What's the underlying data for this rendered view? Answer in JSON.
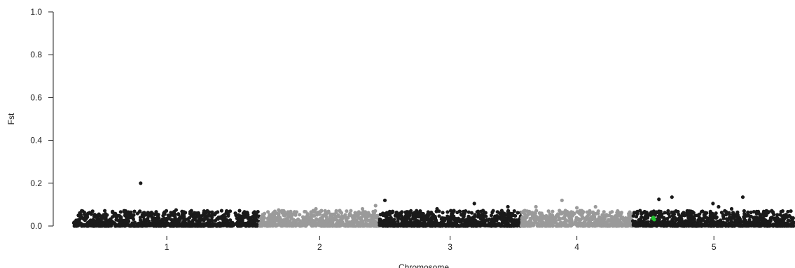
{
  "chart_data": {
    "type": "scatter",
    "xlabel": "Chromosome",
    "ylabel": "Fst",
    "ylim": [
      0,
      1
    ],
    "yticks": [
      0.0,
      0.2,
      0.4,
      0.6,
      0.8,
      1.0
    ],
    "ytick_labels": [
      "0.0",
      "0.2",
      "0.4",
      "0.6",
      "0.8",
      "1.0"
    ],
    "grid": false,
    "legend": "none",
    "colors": {
      "odd_chromosome": "#1a1a1a",
      "even_chromosome": "#9a9a9a",
      "highlight": "#22c32e"
    },
    "chromosomes": [
      {
        "label": "1",
        "start": 0.0,
        "end": 1.0,
        "color": "#1a1a1a",
        "outliers": [
          [
            0.36,
            0.2
          ],
          [
            0.28,
            0.07
          ],
          [
            0.55,
            0.075
          ],
          [
            0.7,
            0.07
          ]
        ]
      },
      {
        "label": "2",
        "start": 1.0,
        "end": 1.64,
        "color": "#9a9a9a",
        "outliers": [
          [
            1.62,
            0.095
          ],
          [
            1.55,
            0.08
          ],
          [
            1.3,
            0.08
          ],
          [
            1.1,
            0.075
          ]
        ]
      },
      {
        "label": "3",
        "start": 1.64,
        "end": 2.4,
        "color": "#1a1a1a",
        "outliers": [
          [
            1.67,
            0.12
          ],
          [
            2.15,
            0.105
          ],
          [
            2.33,
            0.09
          ],
          [
            1.95,
            0.08
          ]
        ]
      },
      {
        "label": "4",
        "start": 2.4,
        "end": 3.0,
        "color": "#9a9a9a",
        "outliers": [
          [
            2.62,
            0.12
          ],
          [
            2.48,
            0.09
          ],
          [
            2.8,
            0.09
          ],
          [
            2.7,
            0.085
          ]
        ]
      },
      {
        "label": "5",
        "start": 3.0,
        "end": 3.87,
        "color": "#1a1a1a",
        "outliers": [
          [
            3.14,
            0.125
          ],
          [
            3.21,
            0.135
          ],
          [
            3.59,
            0.135
          ],
          [
            3.43,
            0.105
          ],
          [
            3.46,
            0.09
          ],
          [
            3.53,
            0.08
          ]
        ]
      }
    ],
    "highlight_points": [
      [
        3.11,
        0.04
      ],
      [
        3.115,
        0.03
      ],
      [
        3.108,
        0.035
      ]
    ],
    "baseline_range": [
      0.0,
      0.08
    ]
  }
}
